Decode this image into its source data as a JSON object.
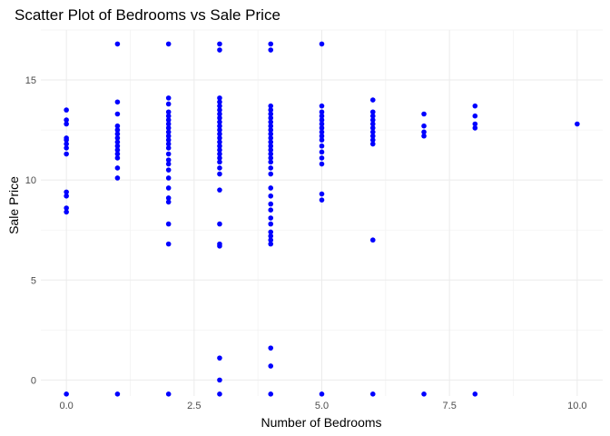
{
  "chart_data": {
    "type": "scatter",
    "title": "Scatter Plot of Bedrooms vs Sale Price",
    "xlabel": "Number of Bedrooms",
    "ylabel": "Sale Price",
    "xlim": [
      -0.5,
      10.5
    ],
    "ylim": [
      -0.8,
      17.5
    ],
    "x_ticks": [
      0,
      2.5,
      5,
      7.5,
      10
    ],
    "x_tick_labels": [
      "0.0",
      "2.5",
      "5.0",
      "7.5",
      "10.0"
    ],
    "y_ticks": [
      0,
      5,
      10,
      15
    ],
    "y_tick_labels": [
      "0",
      "5",
      "10",
      "15"
    ],
    "grid": true,
    "legend": "none",
    "point_color": "#0000ff",
    "series": [
      {
        "points": [
          [
            0,
            -0.7
          ],
          [
            0,
            8.4
          ],
          [
            0,
            8.6
          ],
          [
            0,
            9.2
          ],
          [
            0,
            9.4
          ],
          [
            0,
            11.3
          ],
          [
            0,
            11.6
          ],
          [
            0,
            11.8
          ],
          [
            0,
            12.0
          ],
          [
            0,
            12.1
          ],
          [
            0,
            12.8
          ],
          [
            0,
            13.0
          ],
          [
            0,
            13.5
          ],
          [
            1,
            -0.7
          ],
          [
            1,
            10.1
          ],
          [
            1,
            10.6
          ],
          [
            1,
            11.1
          ],
          [
            1,
            11.3
          ],
          [
            1,
            11.5
          ],
          [
            1,
            11.7
          ],
          [
            1,
            11.9
          ],
          [
            1,
            12.1
          ],
          [
            1,
            12.3
          ],
          [
            1,
            12.5
          ],
          [
            1,
            12.7
          ],
          [
            1,
            13.3
          ],
          [
            1,
            13.9
          ],
          [
            1,
            16.8
          ],
          [
            2,
            -0.7
          ],
          [
            2,
            6.8
          ],
          [
            2,
            7.8
          ],
          [
            2,
            8.9
          ],
          [
            2,
            9.1
          ],
          [
            2,
            9.6
          ],
          [
            2,
            10.1
          ],
          [
            2,
            10.5
          ],
          [
            2,
            10.8
          ],
          [
            2,
            11.0
          ],
          [
            2,
            11.3
          ],
          [
            2,
            11.6
          ],
          [
            2,
            11.8
          ],
          [
            2,
            12.0
          ],
          [
            2,
            12.2
          ],
          [
            2,
            12.4
          ],
          [
            2,
            12.6
          ],
          [
            2,
            12.8
          ],
          [
            2,
            13.0
          ],
          [
            2,
            13.2
          ],
          [
            2,
            13.4
          ],
          [
            2,
            13.8
          ],
          [
            2,
            14.1
          ],
          [
            2,
            16.8
          ],
          [
            3,
            -0.7
          ],
          [
            3,
            0.0
          ],
          [
            3,
            1.1
          ],
          [
            3,
            6.7
          ],
          [
            3,
            6.8
          ],
          [
            3,
            7.8
          ],
          [
            3,
            9.5
          ],
          [
            3,
            10.3
          ],
          [
            3,
            10.6
          ],
          [
            3,
            10.9
          ],
          [
            3,
            11.1
          ],
          [
            3,
            11.3
          ],
          [
            3,
            11.5
          ],
          [
            3,
            11.7
          ],
          [
            3,
            11.9
          ],
          [
            3,
            12.1
          ],
          [
            3,
            12.3
          ],
          [
            3,
            12.5
          ],
          [
            3,
            12.7
          ],
          [
            3,
            12.9
          ],
          [
            3,
            13.1
          ],
          [
            3,
            13.3
          ],
          [
            3,
            13.5
          ],
          [
            3,
            13.7
          ],
          [
            3,
            13.9
          ],
          [
            3,
            14.1
          ],
          [
            3,
            16.5
          ],
          [
            3,
            16.8
          ],
          [
            4,
            -0.7
          ],
          [
            4,
            0.7
          ],
          [
            4,
            1.6
          ],
          [
            4,
            6.8
          ],
          [
            4,
            7.0
          ],
          [
            4,
            7.2
          ],
          [
            4,
            7.4
          ],
          [
            4,
            7.8
          ],
          [
            4,
            8.1
          ],
          [
            4,
            8.5
          ],
          [
            4,
            8.8
          ],
          [
            4,
            9.2
          ],
          [
            4,
            9.6
          ],
          [
            4,
            10.3
          ],
          [
            4,
            10.6
          ],
          [
            4,
            10.9
          ],
          [
            4,
            11.1
          ],
          [
            4,
            11.3
          ],
          [
            4,
            11.5
          ],
          [
            4,
            11.7
          ],
          [
            4,
            11.9
          ],
          [
            4,
            12.1
          ],
          [
            4,
            12.3
          ],
          [
            4,
            12.5
          ],
          [
            4,
            12.7
          ],
          [
            4,
            12.9
          ],
          [
            4,
            13.1
          ],
          [
            4,
            13.3
          ],
          [
            4,
            13.5
          ],
          [
            4,
            13.7
          ],
          [
            4,
            16.5
          ],
          [
            4,
            16.8
          ],
          [
            5,
            -0.7
          ],
          [
            5,
            9.0
          ],
          [
            5,
            9.3
          ],
          [
            5,
            10.8
          ],
          [
            5,
            11.1
          ],
          [
            5,
            11.4
          ],
          [
            5,
            11.7
          ],
          [
            5,
            12.0
          ],
          [
            5,
            12.2
          ],
          [
            5,
            12.4
          ],
          [
            5,
            12.6
          ],
          [
            5,
            12.8
          ],
          [
            5,
            13.0
          ],
          [
            5,
            13.2
          ],
          [
            5,
            13.4
          ],
          [
            5,
            13.7
          ],
          [
            5,
            16.8
          ],
          [
            6,
            -0.7
          ],
          [
            6,
            7.0
          ],
          [
            6,
            11.8
          ],
          [
            6,
            12.0
          ],
          [
            6,
            12.2
          ],
          [
            6,
            12.4
          ],
          [
            6,
            12.6
          ],
          [
            6,
            12.8
          ],
          [
            6,
            13.0
          ],
          [
            6,
            13.2
          ],
          [
            6,
            13.4
          ],
          [
            6,
            14.0
          ],
          [
            7,
            -0.7
          ],
          [
            7,
            12.2
          ],
          [
            7,
            12.4
          ],
          [
            7,
            12.7
          ],
          [
            7,
            13.3
          ],
          [
            8,
            -0.7
          ],
          [
            8,
            12.6
          ],
          [
            8,
            12.8
          ],
          [
            8,
            13.2
          ],
          [
            8,
            13.7
          ],
          [
            10,
            12.8
          ]
        ]
      }
    ]
  }
}
